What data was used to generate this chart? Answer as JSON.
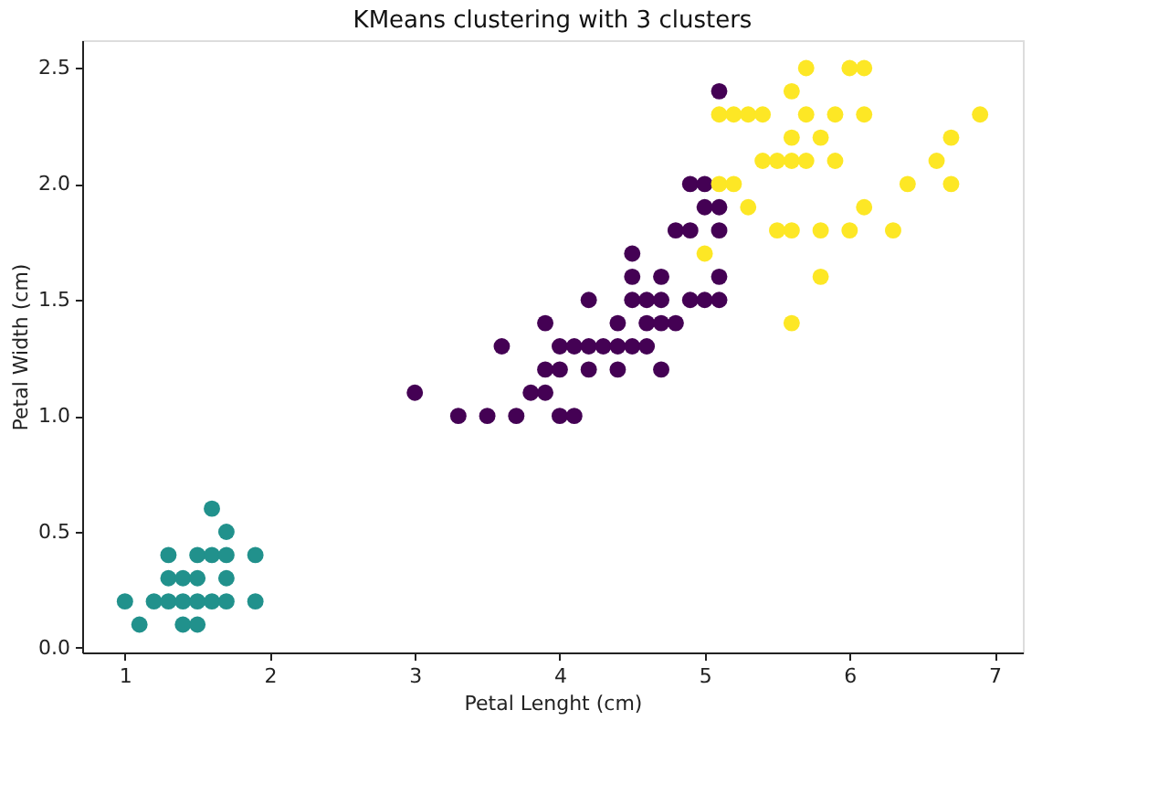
{
  "chart_data": {
    "type": "scatter",
    "title": "KMeans clustering with 3 clusters",
    "xlabel": "Petal Lenght (cm)",
    "ylabel": "Petal Width (cm)",
    "xlim": [
      0.705,
      7.195
    ],
    "ylim": [
      -0.02,
      2.62
    ],
    "xticks": [
      {
        "value": 1,
        "label": "1"
      },
      {
        "value": 2,
        "label": "2"
      },
      {
        "value": 3,
        "label": "3"
      },
      {
        "value": 4,
        "label": "4"
      },
      {
        "value": 5,
        "label": "5"
      },
      {
        "value": 6,
        "label": "6"
      },
      {
        "value": 7,
        "label": "7"
      }
    ],
    "yticks": [
      {
        "value": 0,
        "label": "0.0"
      },
      {
        "value": 0.5,
        "label": "0.5"
      },
      {
        "value": 1,
        "label": "1.0"
      },
      {
        "value": 1.5,
        "label": "1.5"
      },
      {
        "value": 2,
        "label": "2.0"
      },
      {
        "value": 2.5,
        "label": "2.5"
      }
    ],
    "grid": false,
    "marker": "circle",
    "series": [
      {
        "color": "#440154",
        "x": [
          3.0,
          3.3,
          3.5,
          3.7,
          4.0,
          4.1,
          3.8,
          3.9,
          3.9,
          4.0,
          4.2,
          4.4,
          4.7,
          3.6,
          4.0,
          4.1,
          4.2,
          4.3,
          4.4,
          4.5,
          4.6,
          3.9,
          4.4,
          4.6,
          4.7,
          4.8,
          4.2,
          4.5,
          4.6,
          4.7,
          4.9,
          5.0,
          5.1,
          4.5,
          4.7,
          5.1,
          4.5,
          4.8,
          4.9,
          5.1,
          5.0,
          5.1,
          4.9,
          5.0,
          5.1
        ],
        "values": [
          1.1,
          1.0,
          1.0,
          1.0,
          1.0,
          1.0,
          1.1,
          1.1,
          1.2,
          1.2,
          1.2,
          1.2,
          1.2,
          1.3,
          1.3,
          1.3,
          1.3,
          1.3,
          1.3,
          1.3,
          1.3,
          1.4,
          1.4,
          1.4,
          1.4,
          1.4,
          1.5,
          1.5,
          1.5,
          1.5,
          1.5,
          1.5,
          1.5,
          1.6,
          1.6,
          1.6,
          1.7,
          1.8,
          1.8,
          1.8,
          1.9,
          1.9,
          2.0,
          2.0,
          2.4
        ]
      },
      {
        "color": "#21918c",
        "x": [
          1.6,
          1.7,
          1.3,
          1.5,
          1.6,
          1.7,
          1.9,
          1.3,
          1.4,
          1.5,
          1.7,
          1.0,
          1.2,
          1.3,
          1.4,
          1.5,
          1.6,
          1.7,
          1.9,
          1.1,
          1.4,
          1.5
        ],
        "values": [
          0.6,
          0.5,
          0.4,
          0.4,
          0.4,
          0.4,
          0.4,
          0.3,
          0.3,
          0.3,
          0.3,
          0.2,
          0.2,
          0.2,
          0.2,
          0.2,
          0.2,
          0.2,
          0.2,
          0.1,
          0.1,
          0.1
        ]
      },
      {
        "color": "#fde725",
        "x": [
          5.7,
          6.0,
          6.1,
          5.6,
          5.1,
          5.2,
          5.3,
          5.4,
          5.7,
          5.9,
          6.1,
          6.9,
          5.6,
          5.8,
          6.7,
          5.4,
          5.5,
          5.6,
          5.7,
          5.9,
          6.6,
          5.1,
          5.2,
          6.4,
          6.7,
          5.3,
          6.1,
          5.5,
          5.6,
          5.8,
          6.0,
          6.3,
          5.0,
          5.8,
          5.6
        ],
        "values": [
          2.5,
          2.5,
          2.5,
          2.4,
          2.3,
          2.3,
          2.3,
          2.3,
          2.3,
          2.3,
          2.3,
          2.3,
          2.2,
          2.2,
          2.2,
          2.1,
          2.1,
          2.1,
          2.1,
          2.1,
          2.1,
          2.0,
          2.0,
          2.0,
          2.0,
          1.9,
          1.9,
          1.8,
          1.8,
          1.8,
          1.8,
          1.8,
          1.7,
          1.6,
          1.4
        ]
      }
    ]
  }
}
